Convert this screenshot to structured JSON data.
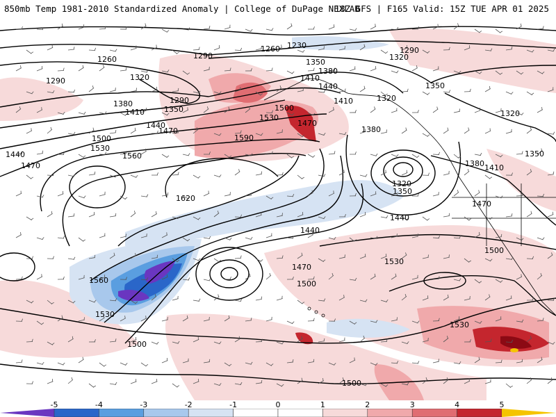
{
  "header": {
    "title_left": "850mb Temp 1981-2010 Standardized Anomaly | College of DuPage NEXLAB",
    "title_right": "18Z GFS | F165 Valid: 15Z TUE APR 01 2025"
  },
  "colors": {
    "pos1": "#f7dada",
    "pos2": "#f0a9ab",
    "pos3": "#e06d72",
    "pos4": "#c4262e",
    "pos5": "#8c0a14",
    "pos6": "#f5c400",
    "neg1": "#d6e3f3",
    "neg2": "#a8c8ec",
    "neg3": "#5a9ee0",
    "neg4": "#2a66c9",
    "neg5": "#6a36c0",
    "contour": "#000000"
  },
  "colorbar": {
    "ticks": [
      "-5",
      "-4",
      "-3",
      "-2",
      "-1",
      "0",
      "1",
      "2",
      "3",
      "4",
      "5"
    ]
  },
  "contours": {
    "labels": [
      "1260",
      "1230",
      "1290",
      "1290",
      "1320",
      "1260",
      "1290",
      "1320",
      "1350",
      "1380",
      "1410",
      "1440",
      "1350",
      "1290",
      "1350",
      "1380",
      "1410",
      "1440",
      "1470",
      "1500",
      "1530",
      "1470",
      "1410",
      "1380",
      "1320",
      "1440",
      "1470",
      "1500",
      "1530",
      "1560",
      "1590",
      "1620",
      "1320",
      "1350",
      "1380",
      "1410",
      "1470",
      "1440",
      "1440",
      "1470",
      "1500",
      "1530",
      "1560",
      "1530",
      "1500",
      "1500",
      "1530",
      "1500",
      "1350",
      "1320"
    ]
  }
}
